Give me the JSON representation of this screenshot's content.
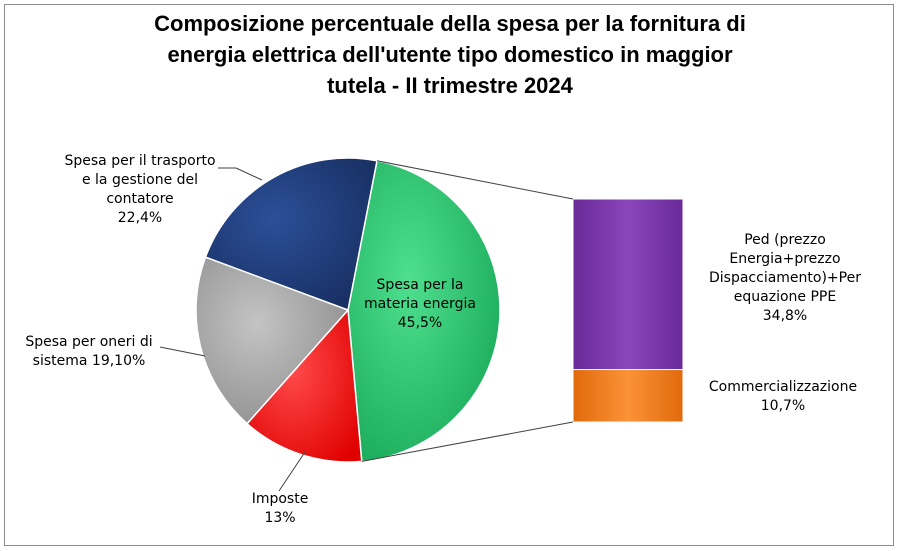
{
  "chart_data": {
    "type": "bar-of-pie",
    "title_lines": [
      "Composizione percentuale della spesa per la fornitura di",
      "energia elettrica dell'utente tipo domestico in maggior",
      "tutela - II trimestre 2024"
    ],
    "pie": [
      {
        "key": "materia",
        "label_lines": [
          "Spesa per la",
          "materia energia"
        ],
        "value_label": "45,5%",
        "value": 45.5,
        "color": "#1fc36a"
      },
      {
        "key": "imposte",
        "label_lines": [
          "Imposte"
        ],
        "value_label": "13%",
        "value": 13.0,
        "color": "#ff1a1a"
      },
      {
        "key": "oneri",
        "label_lines": [
          "Spesa per oneri di",
          "sistema 19,10%"
        ],
        "value_label": "",
        "value": 19.1,
        "color": "#a0a0a0"
      },
      {
        "key": "trasporto",
        "label_lines": [
          "Spesa per il trasporto",
          "e la gestione del",
          "contatore"
        ],
        "value_label": "22,4%",
        "value": 22.4,
        "color": "#1f3c7a"
      }
    ],
    "bar": [
      {
        "key": "ped",
        "label_lines": [
          "Ped (prezzo",
          "Energia+prezzo",
          "Dispacciamento)+Per",
          "equazione PPE"
        ],
        "value_label": "34,8%",
        "value": 34.8,
        "color": "#7a35a8"
      },
      {
        "key": "comm",
        "label_lines": [
          "Commercializzazione"
        ],
        "value_label": "10,7%",
        "value": 10.7,
        "color": "#f07d18"
      }
    ]
  }
}
